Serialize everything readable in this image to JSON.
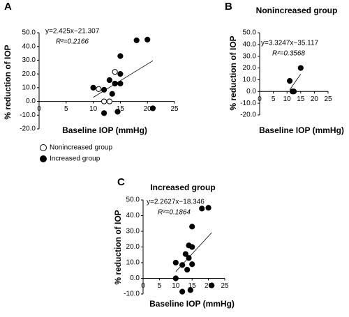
{
  "chart_data": [
    {
      "type": "scatter",
      "panel": "A",
      "x_label": "Baseline IOP (mmHg)",
      "y_label": "% reduction of IOP",
      "xlim": [
        0,
        25
      ],
      "xticks": [
        0,
        5,
        10,
        15,
        20,
        25
      ],
      "ylim": [
        -20,
        50
      ],
      "yticks": [
        {
          "value": -20,
          "label": "-20.0"
        },
        {
          "value": -10,
          "label": "-10.0"
        },
        {
          "value": 0,
          "label": "0.0"
        },
        {
          "value": 10,
          "label": "10.0"
        },
        {
          "value": 20,
          "label": "20.0"
        },
        {
          "value": 30,
          "label": "30.0"
        },
        {
          "value": 40,
          "label": "40.0"
        },
        {
          "value": 50,
          "label": "50.0"
        }
      ],
      "series": [
        {
          "name": "Nonincreased group",
          "color": "#000000",
          "hollow": true,
          "x": [
            11,
            12,
            13,
            14
          ],
          "values": [
            9,
            0,
            0,
            21.5
          ]
        },
        {
          "name": "Increased group",
          "color": "#000000",
          "hollow": false,
          "x": [
            10,
            12,
            12,
            13,
            13.5,
            14,
            14.5,
            15,
            15,
            15,
            18,
            20,
            21
          ],
          "values": [
            10,
            8.5,
            -8.5,
            15.5,
            5.5,
            13,
            -7.5,
            20,
            33,
            13,
            44.5,
            45,
            -5
          ]
        }
      ],
      "trendline": {
        "equation": "y=2.425x−21.307",
        "r2": "R²=0.2166",
        "slope": 2.425,
        "intercept": -21.307
      }
    },
    {
      "type": "scatter",
      "panel": "B",
      "title": "Nonincreased group",
      "x_label": "Baseline IOP (mmHg)",
      "y_label": "% reduction of IOP",
      "xlim": [
        0,
        25
      ],
      "xticks": [
        0,
        5,
        10,
        15,
        20,
        25
      ],
      "ylim": [
        -20,
        50
      ],
      "yticks": [
        {
          "value": -20,
          "label": "-20.0"
        },
        {
          "value": -10,
          "label": "-10.0"
        },
        {
          "value": 0,
          "label": "0.0"
        },
        {
          "value": 10,
          "label": "10.0"
        },
        {
          "value": 20,
          "label": "20.0"
        },
        {
          "value": 30,
          "label": "30.0"
        },
        {
          "value": 40,
          "label": "40.0"
        },
        {
          "value": 50,
          "label": "50.0"
        }
      ],
      "series": [
        {
          "color": "#000000",
          "hollow": false,
          "x": [
            11,
            12,
            12.5,
            15
          ],
          "values": [
            9,
            0,
            0,
            20
          ]
        }
      ],
      "trendline": {
        "equation": "y=3.3247x−35.117",
        "r2": "R²=0.3568",
        "slope": 3.3247,
        "intercept": -35.117
      }
    },
    {
      "type": "scatter",
      "panel": "C",
      "title": "Increased group",
      "x_label": "Baseline IOP (mmHg)",
      "y_label": "% reduction of IOP",
      "xlim": [
        0,
        25
      ],
      "xticks": [
        0,
        5,
        10,
        15,
        20,
        25
      ],
      "ylim": [
        -10,
        50
      ],
      "yticks": [
        {
          "value": -10,
          "label": "-10.0"
        },
        {
          "value": 0,
          "label": "0.0"
        },
        {
          "value": 10,
          "label": "10.0"
        },
        {
          "value": 20,
          "label": "20.0"
        },
        {
          "value": 30,
          "label": "30.0"
        },
        {
          "value": 40,
          "label": "40.0"
        },
        {
          "value": 50,
          "label": "50.0"
        }
      ],
      "series": [
        {
          "color": "#000000",
          "hollow": false,
          "x": [
            10,
            10,
            12,
            12,
            13,
            13.5,
            14,
            14,
            14.5,
            15,
            15,
            15,
            18,
            20,
            21
          ],
          "values": [
            10,
            0,
            8.5,
            -8.5,
            15.5,
            5.5,
            13,
            21,
            -7.5,
            20,
            33,
            9,
            44.5,
            45,
            -4.5
          ]
        }
      ],
      "trendline": {
        "equation": "y=2.2627x−18.346",
        "r2": "R²=0.1864",
        "slope": 2.2627,
        "intercept": -18.346
      }
    }
  ]
}
